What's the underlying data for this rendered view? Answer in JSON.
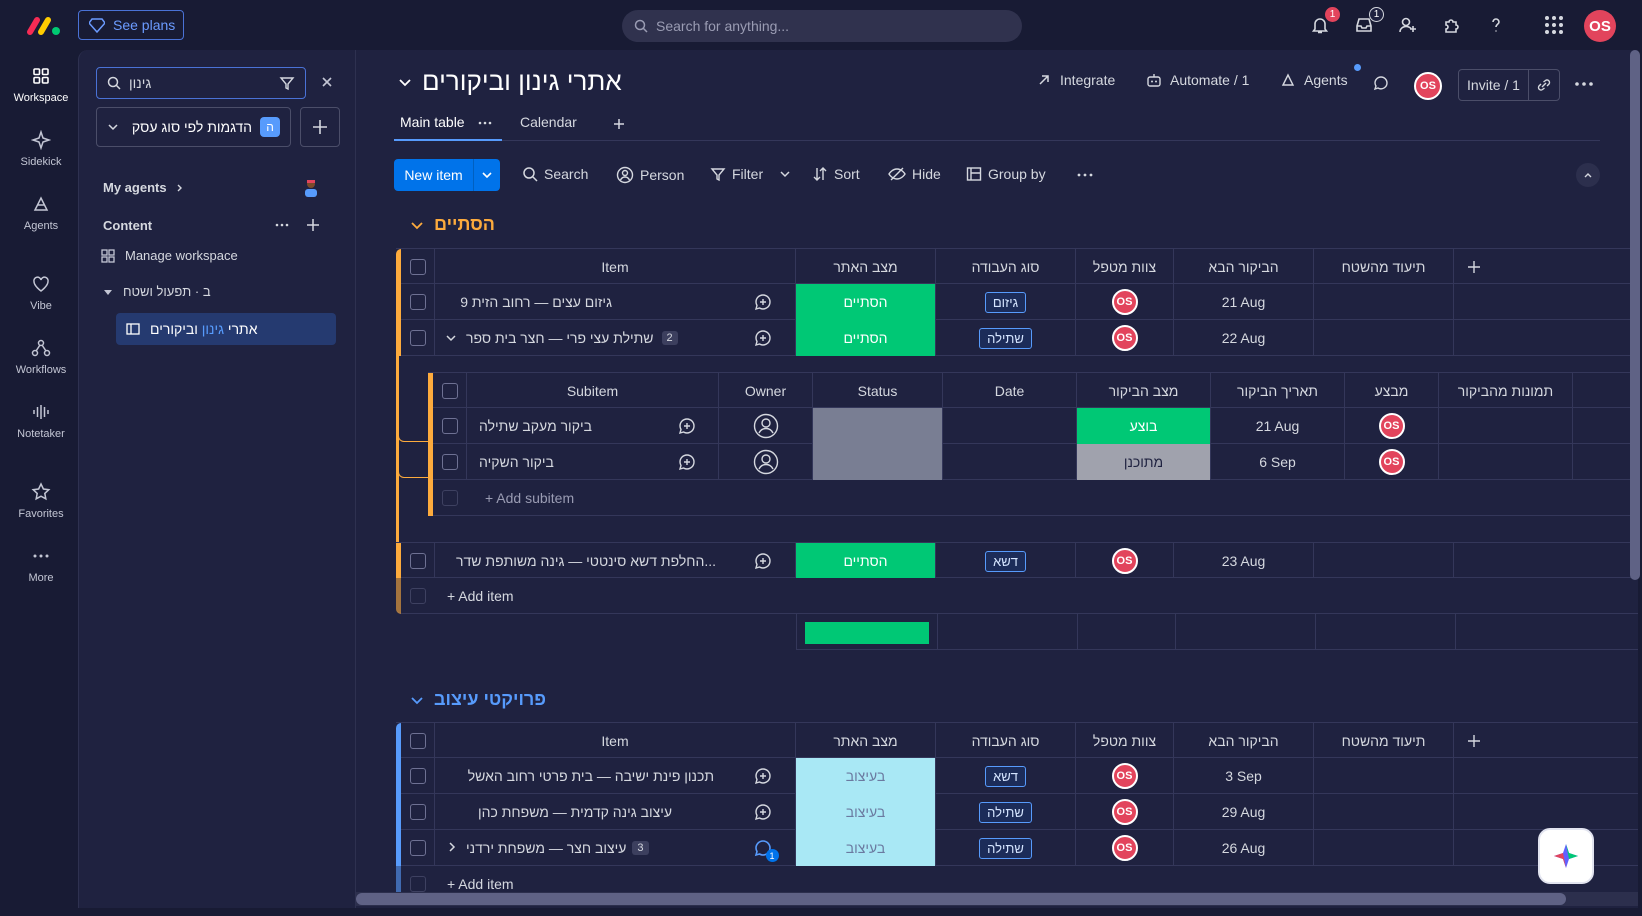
{
  "topbar": {
    "see_plans": "See plans",
    "search_placeholder": "Search for anything...",
    "notif_count": "1",
    "inbox_count": "1",
    "user_initials": "OS"
  },
  "leftnav": {
    "items": [
      "Workspace",
      "Sidekick",
      "Agents",
      "Vibe",
      "Workflows",
      "Notetaker",
      "Favorites",
      "More"
    ]
  },
  "sidebar": {
    "search_value": "גינון",
    "workspace_name": "הדגמות לפי סוג עסק",
    "workspace_badge": "ה",
    "my_agents": "My agents",
    "content": "Content",
    "manage": "Manage workspace",
    "folder": "ב · תפעול ושטח",
    "board_pre": "אתרי ",
    "board_hl": "גינון",
    "board_post": " וביקורים"
  },
  "header": {
    "title": "אתרי גינון וביקורים",
    "integrate": "Integrate",
    "automate": "Automate / 1",
    "agents": "Agents",
    "invite": "Invite / 1",
    "avatar": "OS"
  },
  "tabs": {
    "main": "Main table",
    "calendar": "Calendar"
  },
  "toolbar": {
    "new_item": "New item",
    "search": "Search",
    "person": "Person",
    "filter": "Filter",
    "sort": "Sort",
    "hide": "Hide",
    "group_by": "Group by"
  },
  "columns": {
    "item": "Item",
    "site_status": "מצב האתר",
    "work_type": "סוג העבודה",
    "team": "צוות מטפל",
    "next_visit": "הביקור הבא",
    "customer_doc": "תיעוד מהשטח"
  },
  "sub_columns": {
    "subitem": "Subitem",
    "owner": "Owner",
    "status": "Status",
    "date": "Date",
    "visit_status": "מצב הביקור",
    "visit_date": "תאריך הביקור",
    "performer": "מבצע",
    "photos": "תמונות מהביקור"
  },
  "group1": {
    "title": "הסתיים",
    "color": "#fdab3d",
    "rows": [
      {
        "name": "גיזום עצים — רחוב הזית 9",
        "status": "הסתיים",
        "type": "גיזום",
        "avatar": "OS",
        "date": "21 Aug"
      },
      {
        "name": "שתילת עצי פרי — חצר בית ספר",
        "count": "2",
        "status": "הסתיים",
        "type": "שתילה",
        "avatar": "OS",
        "date": "22 Aug"
      },
      {
        "name": "החלפת דשא סינטטי — גינה משותפת שדר...",
        "status": "הסתיים",
        "type": "דשא",
        "avatar": "OS",
        "date": "23 Aug"
      }
    ],
    "add_item": "+ Add item",
    "subitems": [
      {
        "name": "ביקור מעקב שתילה",
        "visit_status": "בוצע",
        "visit_date": "21 Aug",
        "avatar": "OS"
      },
      {
        "name": "ביקור השקיה",
        "visit_status": "מתוכנן",
        "visit_date": "6 Sep",
        "avatar": "OS"
      }
    ],
    "add_subitem": "+ Add subitem"
  },
  "group2": {
    "title": "פרויקטי עיצוב",
    "color": "#579bfc",
    "rows": [
      {
        "name": "תכנון פינת ישיבה — בית פרטי רחוב האשל",
        "status": "בעיצוב",
        "type": "דשא",
        "avatar": "OS",
        "date": "3 Sep"
      },
      {
        "name": "עיצוב גינה קדמית — משפחת כהן",
        "status": "בעיצוב",
        "type": "שתילה",
        "avatar": "OS",
        "date": "29 Aug"
      },
      {
        "name": "עיצוב חצר — משפחת ירדני",
        "count": "3",
        "status": "בעיצוב",
        "type": "שתילה",
        "avatar": "OS",
        "date": "26 Aug",
        "updates": "1"
      }
    ],
    "add_item": "+ Add item"
  }
}
